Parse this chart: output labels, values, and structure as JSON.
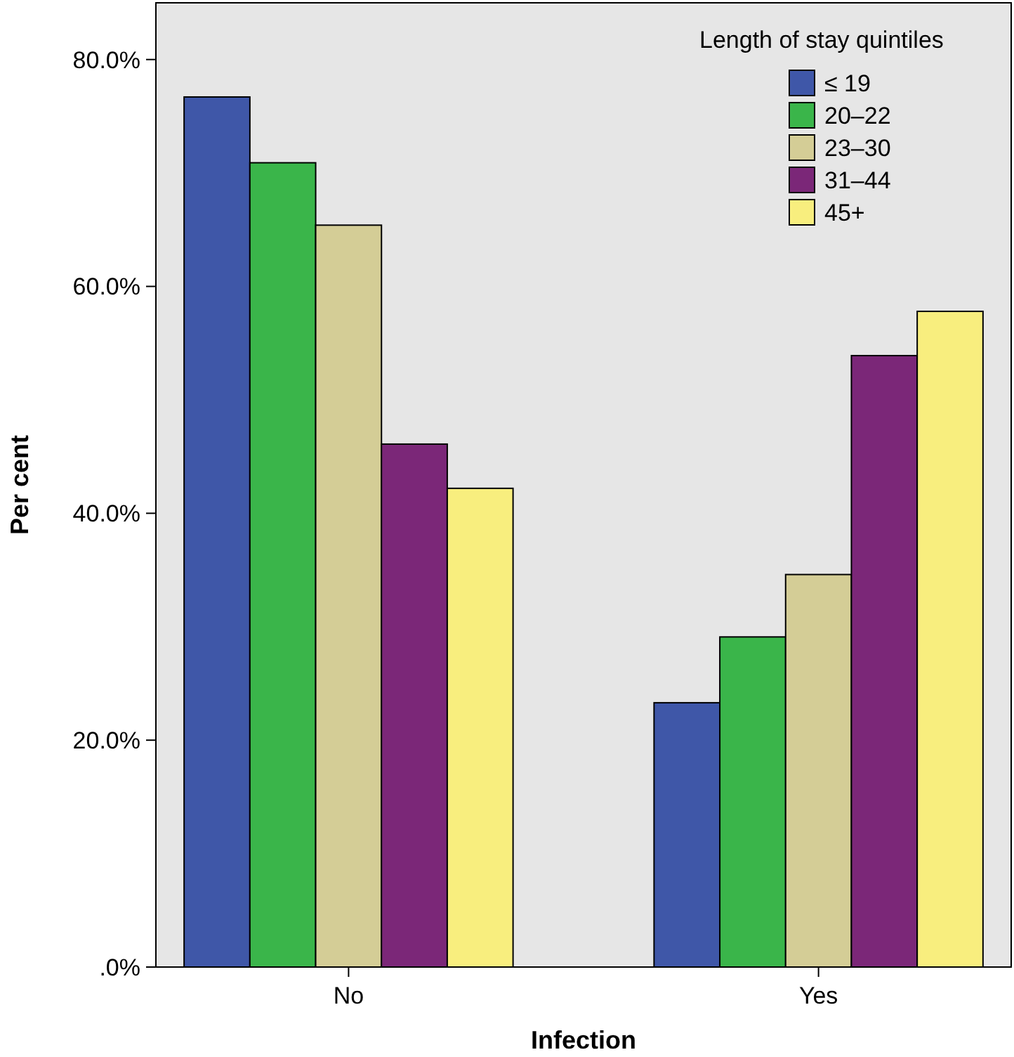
{
  "chart_data": {
    "type": "bar",
    "xlabel": "Infection",
    "ylabel": "Per cent",
    "legend_title": "Length of stay quintiles",
    "categories": [
      "No",
      "Yes"
    ],
    "series": [
      {
        "name": "≤  19",
        "color": "#3f57a8",
        "values": [
          76.7,
          23.3
        ]
      },
      {
        "name": "20–22",
        "color": "#3ab54a",
        "values": [
          70.9,
          29.1
        ]
      },
      {
        "name": "23–30",
        "color": "#d4cd96",
        "values": [
          65.4,
          34.6
        ]
      },
      {
        "name": "31–44",
        "color": "#7b2778",
        "values": [
          46.1,
          53.9
        ]
      },
      {
        "name": "45+",
        "color": "#f8ee7e",
        "values": [
          42.2,
          57.8
        ]
      }
    ],
    "ylim": [
      0,
      85
    ],
    "yticks": [
      {
        "value": 0,
        "label": ".0%"
      },
      {
        "value": 20,
        "label": "20.0%"
      },
      {
        "value": 40,
        "label": "40.0%"
      },
      {
        "value": 60,
        "label": "60.0%"
      },
      {
        "value": 80,
        "label": "80.0%"
      }
    ],
    "grid": false,
    "legend": "top right"
  }
}
